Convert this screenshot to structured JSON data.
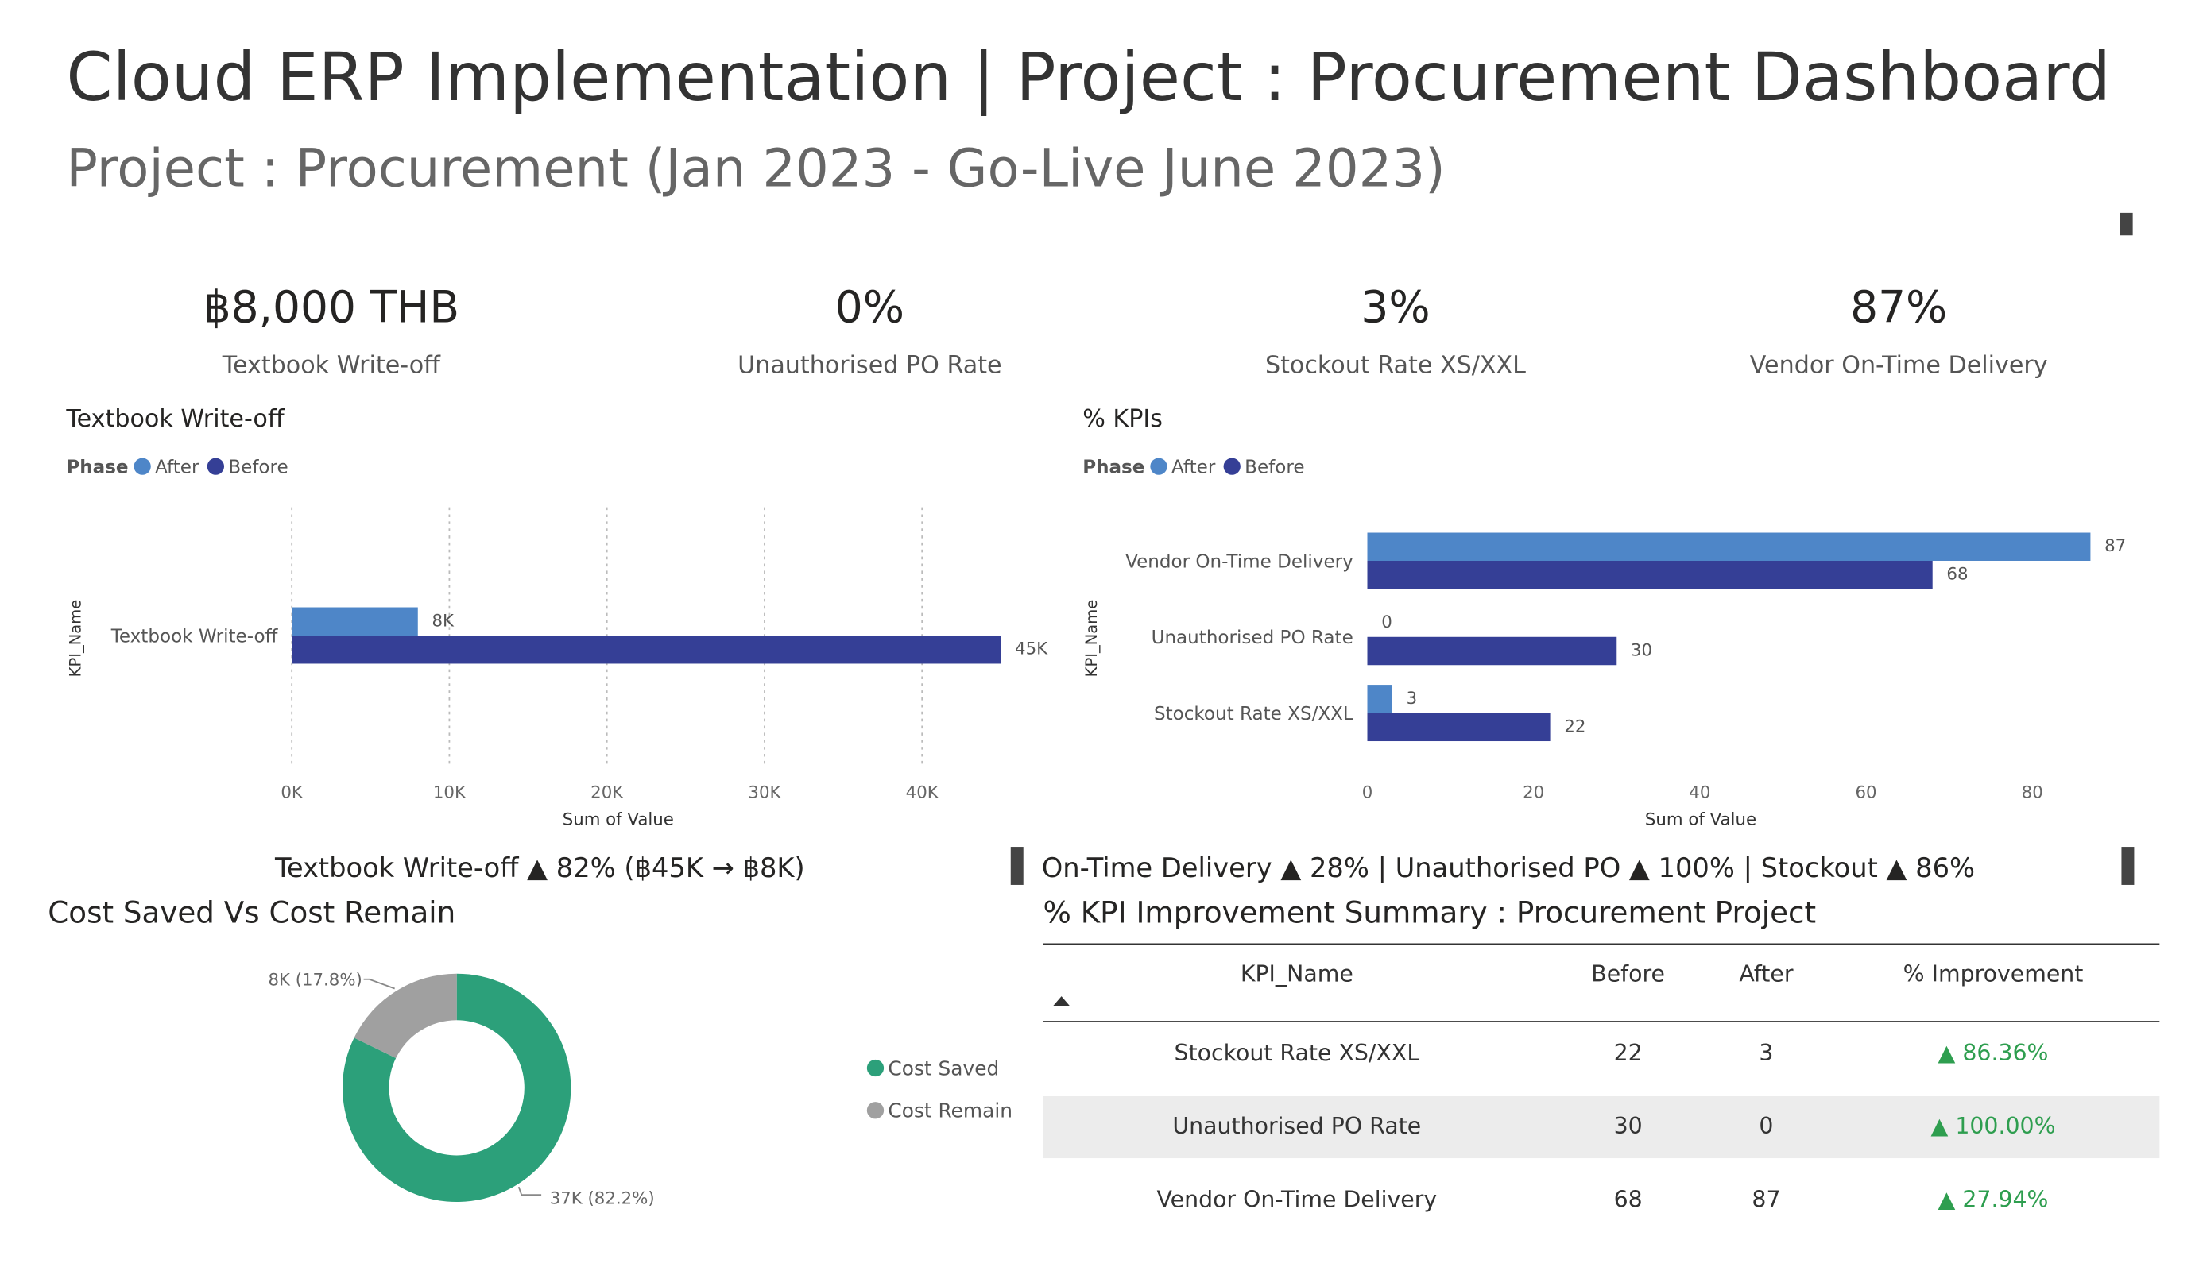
{
  "header": {
    "title": "Cloud ERP Implementation | Project : Procurement Dashboard",
    "subtitle": "Project : Procurement  (Jan 2023 - Go-Live June 2023)"
  },
  "kpis": [
    {
      "value": "฿8,000 THB",
      "label": "Textbook Write-off"
    },
    {
      "value": "0%",
      "label": "Unauthorised PO Rate"
    },
    {
      "value": "3%",
      "label": "Stockout Rate XS/XXL"
    },
    {
      "value": "87%",
      "label": "Vendor On-Time Delivery"
    }
  ],
  "chart_data": [
    {
      "type": "hbar",
      "title": "Textbook Write-off",
      "legend_title": "Phase",
      "y_label": "KPI_Name",
      "x_label": "Sum of Value",
      "categories": [
        "Textbook Write-off"
      ],
      "series": [
        {
          "name": "After",
          "color": "#4e86c8",
          "values": [
            8000
          ],
          "value_labels": [
            "8K"
          ]
        },
        {
          "name": "Before",
          "color": "#353f96",
          "values": [
            45000
          ],
          "value_labels": [
            "45K"
          ]
        }
      ],
      "xlim": [
        0,
        45000
      ],
      "xticks": [
        {
          "value": 0,
          "label": "0K"
        },
        {
          "value": 10000,
          "label": "10K"
        },
        {
          "value": 20000,
          "label": "20K"
        },
        {
          "value": 30000,
          "label": "30K"
        },
        {
          "value": 40000,
          "label": "40K"
        }
      ],
      "grid": true,
      "annotation": "Textbook Write-off  ▲ 82%  (฿45K → ฿8K)"
    },
    {
      "type": "hbar",
      "title": "% KPIs",
      "legend_title": "Phase",
      "y_label": "KPI_Name",
      "x_label": "Sum of Value",
      "categories": [
        "Vendor On-Time Delivery",
        "Unauthorised PO Rate",
        "Stockout Rate XS/XXL"
      ],
      "series": [
        {
          "name": "After",
          "color": "#4e86c8",
          "values": [
            87,
            0,
            3
          ]
        },
        {
          "name": "Before",
          "color": "#353f96",
          "values": [
            68,
            30,
            22
          ]
        }
      ],
      "xlim": [
        0,
        87
      ],
      "xticks": [
        0,
        20,
        40,
        60,
        80
      ],
      "grid": false,
      "annotation": "On-Time Delivery  ▲ 28%  |  Unauthorised PO  ▲ 100%  |  Stockout  ▲ 86%"
    },
    {
      "type": "donut",
      "title": "Cost Saved Vs Cost Remain",
      "categories": [
        "Cost Saved",
        "Cost Remain"
      ],
      "values": [
        37000,
        8000
      ],
      "value_labels": [
        "37K (82.2%)",
        "8K (17.8%)"
      ],
      "colors": [
        "#2ca07a",
        "#a0a0a0"
      ]
    }
  ],
  "table": {
    "title": "% KPI Improvement Summary : Procurement Project",
    "columns": [
      "KPI_Name",
      "Before",
      "After",
      "% Improvement"
    ],
    "rows": [
      [
        "Stockout Rate XS/XXL",
        22,
        3,
        "▲ 86.36%"
      ],
      [
        "Unauthorised PO Rate",
        30,
        0,
        "▲ 100.00%"
      ],
      [
        "Vendor On-Time Delivery",
        68,
        87,
        "▲ 27.94%"
      ]
    ]
  }
}
